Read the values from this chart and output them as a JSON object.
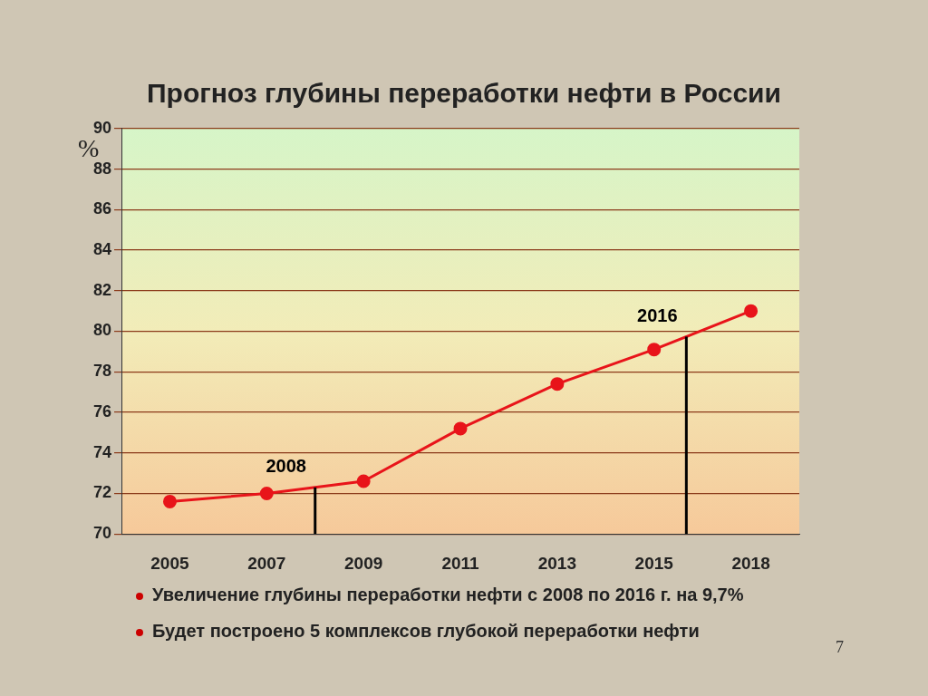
{
  "chart_data": {
    "type": "line",
    "title": "Прогноз глубины переработки нефти в России",
    "ylabel": "%",
    "categories": [
      "2005",
      "2007",
      "2009",
      "2011",
      "2013",
      "2015",
      "2018"
    ],
    "series": [
      {
        "color": "#e8141a",
        "values": [
          71.6,
          72.0,
          72.6,
          75.2,
          77.4,
          79.1,
          81.0
        ]
      }
    ],
    "ylim": [
      70,
      90
    ],
    "yticks": [
      70,
      72,
      74,
      76,
      78,
      80,
      82,
      84,
      86,
      88,
      90
    ],
    "grid": "y",
    "legend": false,
    "marker": "circle",
    "line_style": "solid",
    "annotations": [
      "2008",
      "2016",
      "Увеличение глубины переработки нефти с 2008 по 2016 г. на 9,7%",
      "Будет построено 5 комплексов глубокой переработки нефти",
      "7"
    ]
  }
}
